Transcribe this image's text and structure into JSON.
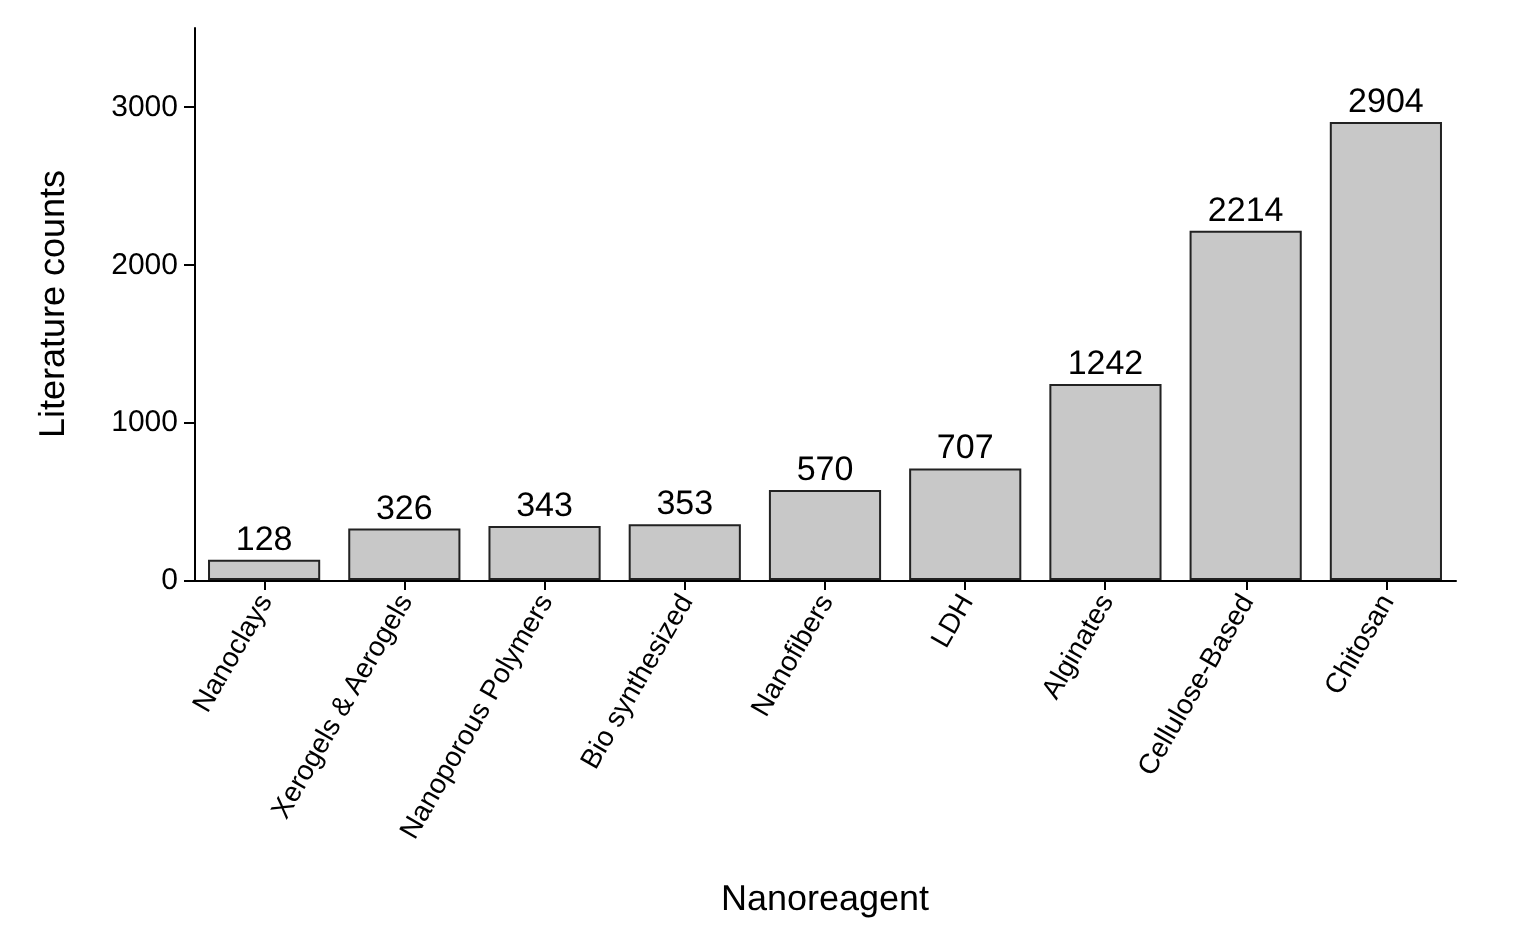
{
  "chart_data": {
    "type": "bar",
    "xlabel": "Nanoreagent",
    "ylabel": "Literature counts",
    "categories": [
      "Nanoclays",
      "Xerogels & Aerogels",
      "Nanoporous Polymers",
      "Bio synthesized",
      "Nanofibers",
      "LDH",
      "Alginates",
      "Cellulose-Based",
      "Chitosan"
    ],
    "values": [
      128,
      326,
      343,
      353,
      570,
      707,
      1242,
      2214,
      2904
    ],
    "color": "#c8c8c8",
    "ylim": [
      0,
      3500
    ],
    "yticks": [
      0,
      1000,
      2000,
      3000
    ],
    "grid": false,
    "data_labels": true
  }
}
